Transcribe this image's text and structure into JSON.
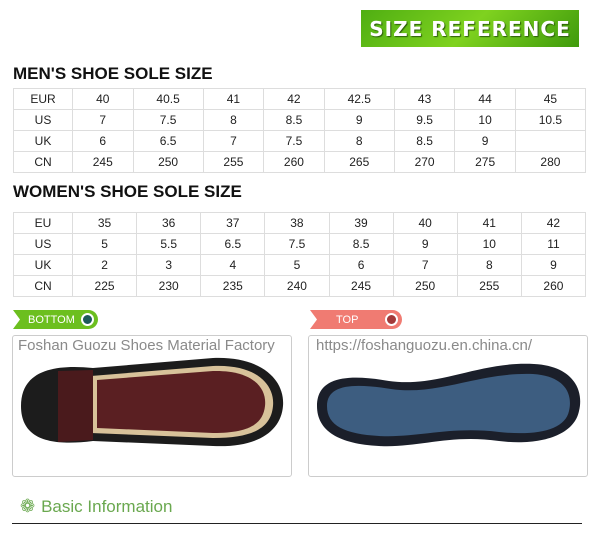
{
  "banner": {
    "title": "SIZE REFERENCE",
    "color": "#5dbb16"
  },
  "men": {
    "title": "MEN'S SHOE SOLE SIZE",
    "rows": [
      [
        "EUR",
        "40",
        "40.5",
        "41",
        "42",
        "42.5",
        "43",
        "44",
        "45"
      ],
      [
        "US",
        "7",
        "7.5",
        "8",
        "8.5",
        "9",
        "9.5",
        "10",
        "10.5"
      ],
      [
        "UK",
        "6",
        "6.5",
        "7",
        "7.5",
        "8",
        "8.5",
        "9",
        ""
      ],
      [
        "CN",
        "245",
        "250",
        "255",
        "260",
        "265",
        "270",
        "275",
        "280"
      ]
    ]
  },
  "women": {
    "title": "WOMEN'S SHOE SOLE SIZE",
    "rows": [
      [
        "EU",
        "35",
        "36",
        "37",
        "38",
        "39",
        "40",
        "41",
        "42"
      ],
      [
        "US",
        "5",
        "5.5",
        "6.5",
        "7.5",
        "8.5",
        "9",
        "10",
        "11"
      ],
      [
        "UK",
        "2",
        "3",
        "4",
        "5",
        "6",
        "7",
        "8",
        "9"
      ],
      [
        "CN",
        "225",
        "230",
        "235",
        "240",
        "245",
        "250",
        "255",
        "260"
      ]
    ]
  },
  "watermark": {
    "line1": "Foshan Guozu Shoes Material Factory",
    "line2": "https://foshanguozu.en.china.cn/"
  },
  "tags": {
    "bottom": {
      "label": "BOTTOM",
      "color": "#6cbf1f"
    },
    "top": {
      "label": "TOP",
      "color": "#f07b72"
    }
  },
  "basic": {
    "title": "Basic Information",
    "icon": "flower-icon",
    "color": "#6aa84f"
  }
}
